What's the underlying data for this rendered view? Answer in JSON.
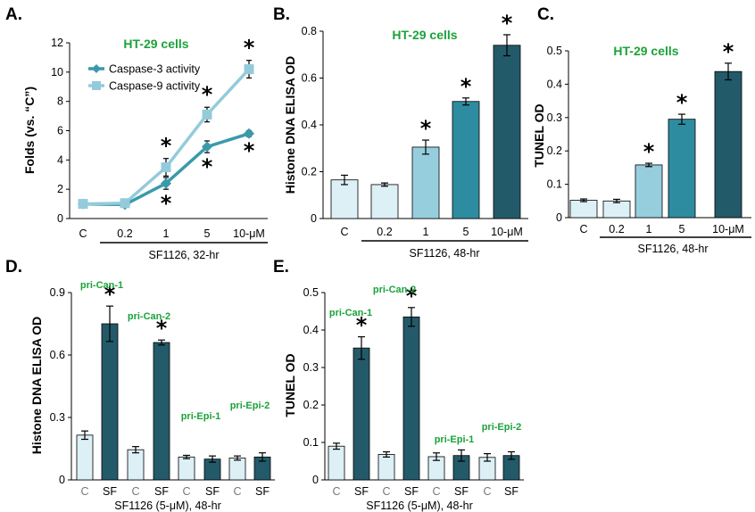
{
  "colors": {
    "light_bar": "#dcf0f6",
    "medium_bar": "#96cede",
    "teal_bar": "#2e8ca0",
    "dark_bar": "#235a6a",
    "caspase3": "#3a9aab",
    "caspase9": "#93cbdb",
    "green_text": "#1aa33a"
  },
  "chart_data": [
    {
      "panel": "A.",
      "type": "line",
      "title": "HT-29 cells",
      "ylabel": "Folds (vs. “C”)",
      "xlabel": "SF1126, 32-hr",
      "categories": [
        "C",
        "0.2",
        "1",
        "5",
        "10-μM"
      ],
      "ylim": [
        0,
        12
      ],
      "yticks": [
        "0",
        "2",
        "4",
        "6",
        "8",
        "10",
        "12"
      ],
      "legend_position": "top-left",
      "series": [
        {
          "name": "Caspase-3 activity",
          "values": [
            1.0,
            0.95,
            2.4,
            4.9,
            5.8
          ],
          "errors": [
            0.1,
            0.1,
            0.4,
            0.4,
            0.2
          ],
          "stars": [
            "",
            "",
            "*",
            "*",
            "*"
          ]
        },
        {
          "name": "Caspase-9 activity",
          "values": [
            1.0,
            1.05,
            3.5,
            7.1,
            10.2
          ],
          "errors": [
            0.1,
            0.1,
            0.6,
            0.5,
            0.6
          ],
          "stars": [
            "",
            "",
            "*",
            "*",
            "*"
          ]
        }
      ]
    },
    {
      "panel": "B.",
      "type": "bar",
      "title": "HT-29 cells",
      "ylabel": "Histone DNA ELISA OD",
      "xlabel": "SF1126, 48-hr",
      "categories": [
        "C",
        "0.2",
        "1",
        "5",
        "10-μM"
      ],
      "values": [
        0.165,
        0.145,
        0.305,
        0.5,
        0.74
      ],
      "errors": [
        0.02,
        0.007,
        0.03,
        0.015,
        0.045
      ],
      "stars": [
        "",
        "",
        "*",
        "*",
        "*"
      ],
      "ylim": [
        0,
        0.8
      ],
      "yticks": [
        "0",
        "0.2",
        "0.4",
        "0.6",
        "0.8"
      ]
    },
    {
      "panel": "C.",
      "type": "bar",
      "title": "HT-29 cells",
      "ylabel": "TUNEL OD",
      "xlabel": "SF1126, 48-hr",
      "categories": [
        "C",
        "0.2",
        "1",
        "5",
        "10-μM"
      ],
      "values": [
        0.052,
        0.05,
        0.158,
        0.295,
        0.438
      ],
      "errors": [
        0.004,
        0.005,
        0.005,
        0.015,
        0.025
      ],
      "stars": [
        "",
        "",
        "*",
        "*",
        "*"
      ],
      "ylim": [
        0,
        0.5
      ],
      "yticks": [
        "0",
        "0.1",
        "0.2",
        "0.3",
        "0.4",
        "0.5"
      ]
    },
    {
      "panel": "D.",
      "type": "bar",
      "ylabel": "Histone DNA ELISA OD",
      "xlabel": "SF1126 (5-μM), 48-hr",
      "categories": [
        "C",
        "SF",
        "C",
        "SF",
        "C",
        "SF",
        "C",
        "SF"
      ],
      "groups": [
        "pri-Can-1",
        "pri-Can-2",
        "pri-Epi-1",
        "pri-Epi-2"
      ],
      "values": [
        0.215,
        0.75,
        0.145,
        0.66,
        0.11,
        0.1,
        0.105,
        0.11
      ],
      "errors": [
        0.02,
        0.085,
        0.015,
        0.012,
        0.008,
        0.015,
        0.01,
        0.02
      ],
      "stars": [
        "",
        "*",
        "",
        "*",
        "",
        "",
        "",
        ""
      ],
      "ylim": [
        0,
        0.9
      ],
      "yticks": [
        "0",
        "0.3",
        "0.6",
        "0.9"
      ]
    },
    {
      "panel": "E.",
      "type": "bar",
      "ylabel": "TUNEL OD",
      "xlabel": "SF1126 (5-μM), 48-hr",
      "categories": [
        "C",
        "SF",
        "C",
        "SF",
        "C",
        "SF",
        "C",
        "SF"
      ],
      "groups": [
        "pri-Can-1",
        "pri-Can-2",
        "pri-Epi-1",
        "pri-Epi-2"
      ],
      "values": [
        0.09,
        0.352,
        0.068,
        0.435,
        0.062,
        0.065,
        0.06,
        0.065
      ],
      "errors": [
        0.008,
        0.03,
        0.007,
        0.025,
        0.01,
        0.015,
        0.01,
        0.01
      ],
      "stars": [
        "",
        "*",
        "",
        "*",
        "",
        "",
        "",
        ""
      ],
      "ylim": [
        0,
        0.5
      ],
      "yticks": [
        "0",
        "0.1",
        "0.2",
        "0.3",
        "0.4",
        "0.5"
      ]
    }
  ]
}
